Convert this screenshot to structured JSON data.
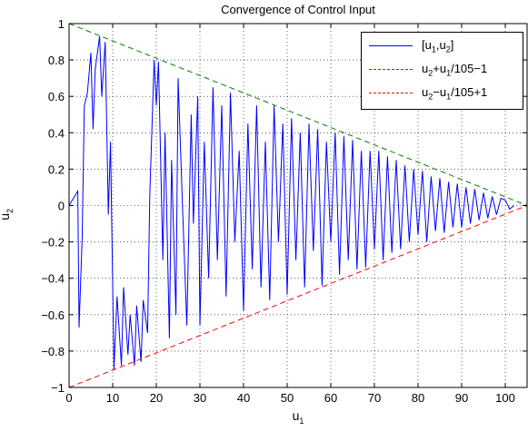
{
  "chart_data": {
    "type": "line",
    "title": "Convergence of Control Input",
    "xlabel": "u1",
    "ylabel": "u2",
    "xlim": [
      0,
      105
    ],
    "ylim": [
      -1,
      1
    ],
    "xticks": [
      0,
      10,
      20,
      30,
      40,
      50,
      60,
      70,
      80,
      90,
      100
    ],
    "yticks": [
      -1,
      -0.8,
      -0.6,
      -0.4,
      -0.2,
      0,
      0.2,
      0.4,
      0.6,
      0.8,
      1
    ],
    "xtick_labels": [
      "0",
      "10",
      "20",
      "30",
      "40",
      "50",
      "60",
      "70",
      "80",
      "90",
      "100"
    ],
    "ytick_labels": [
      "−1",
      "−0.8",
      "−0.6",
      "−0.4",
      "−0.2",
      "0",
      "0.2",
      "0.4",
      "0.6",
      "0.8",
      "1"
    ],
    "grid": true,
    "legend_position": "top-right",
    "series": [
      {
        "name": "[u1,u2]",
        "color": "#0000ff",
        "style": "solid",
        "x": [
          0,
          2,
          2.3,
          3.0,
          3.5,
          4.2,
          5.0,
          5.5,
          6.0,
          7.0,
          7.5,
          8.3,
          9.0,
          9.5,
          10.3,
          11.0,
          12.0,
          12.5,
          13.5,
          14.0,
          15.0,
          15.5,
          16.5,
          17.0,
          18.0,
          18.5,
          19.5,
          20.0,
          20.5,
          21.5,
          22.0,
          23.0,
          23.5,
          24.5,
          25.0,
          26.0,
          27.0,
          28.0,
          28.5,
          29.5,
          30.0,
          31.0,
          32.0,
          33.0,
          34.0,
          35.0,
          36.0,
          37.0,
          38.0,
          39.0,
          40.0,
          41.0,
          42.0,
          43.0,
          44.0,
          45.0,
          46.0,
          47.0,
          48.0,
          49.0,
          50.0,
          51.0,
          52.0,
          53.0,
          54.0,
          55.0,
          56.0,
          57.0,
          58.0,
          59.0,
          60.0,
          61.0,
          62.0,
          63.0,
          64.0,
          65.0,
          66.0,
          67.0,
          68.0,
          69.0,
          70.0,
          71.0,
          72.0,
          73.0,
          74.0,
          75.0,
          76.0,
          77.0,
          78.0,
          79.0,
          80.0,
          81.0,
          82.0,
          83.0,
          84.0,
          85.0,
          86.0,
          87.0,
          88.0,
          89.0,
          90.0,
          91.0,
          92.0,
          93.0,
          94.0,
          95.0,
          96.0,
          97.0,
          98.0,
          99.0,
          100.0,
          101.0,
          102.0
        ],
        "y": [
          0,
          0.08,
          -0.67,
          -0.18,
          0.55,
          0.62,
          0.84,
          0.42,
          0.75,
          0.93,
          0.6,
          0.9,
          -0.05,
          0.35,
          -0.9,
          -0.5,
          -0.88,
          -0.45,
          -0.82,
          -0.6,
          -0.88,
          -0.55,
          -0.86,
          -0.52,
          -0.7,
          0.05,
          0.8,
          0.55,
          0.79,
          -0.3,
          0.4,
          -0.73,
          0.25,
          -0.6,
          0.7,
          0.0,
          -0.66,
          0.5,
          -0.1,
          0.6,
          -0.66,
          0.35,
          -0.4,
          0.65,
          -0.3,
          0.55,
          -0.5,
          0.62,
          -0.2,
          0.3,
          -0.58,
          0.45,
          -0.35,
          0.55,
          -0.45,
          0.35,
          -0.52,
          0.55,
          -0.2,
          0.45,
          -0.49,
          0.48,
          -0.3,
          0.4,
          -0.45,
          0.45,
          -0.25,
          0.42,
          -0.44,
          0.35,
          -0.2,
          0.4,
          -0.38,
          0.38,
          -0.3,
          0.36,
          -0.35,
          0.3,
          -0.34,
          0.3,
          -0.24,
          0.3,
          -0.3,
          0.27,
          -0.26,
          0.25,
          -0.24,
          0.22,
          -0.2,
          0.2,
          -0.16,
          0.19,
          -0.2,
          0.16,
          -0.14,
          0.15,
          -0.15,
          0.13,
          -0.12,
          0.12,
          -0.12,
          0.1,
          -0.1,
          0.09,
          -0.08,
          0.07,
          -0.07,
          0.05,
          -0.05,
          0.04,
          0.03,
          -0.02,
          0.0
        ]
      },
      {
        "name": "u2+u1/105−1",
        "color": "#008000",
        "style": "dashed",
        "x": [
          0,
          105
        ],
        "y": [
          1,
          0
        ]
      },
      {
        "name": "u2−u1/105+1",
        "color": "#ff0000",
        "style": "dashed",
        "x": [
          0,
          105
        ],
        "y": [
          -1,
          0
        ]
      }
    ]
  },
  "legend": {
    "entry1_main": "[u",
    "entry1_sub1": "1",
    "entry1_sep": ",u",
    "entry1_sub2": "2",
    "entry1_end": "]",
    "entry2_a": "u",
    "entry2_sub1": "2",
    "entry2_b": "+u",
    "entry2_sub2": "1",
    "entry2_c": "/105−1",
    "entry3_a": "u",
    "entry3_sub1": "2",
    "entry3_b": "−u",
    "entry3_sub2": "1",
    "entry3_c": "/105+1",
    "colors": [
      "#0000ff",
      "#008000",
      "#ff0000"
    ]
  },
  "axis_labels": {
    "x_main": "u",
    "x_sub": "1",
    "y_main": "u",
    "y_sub": "2"
  }
}
